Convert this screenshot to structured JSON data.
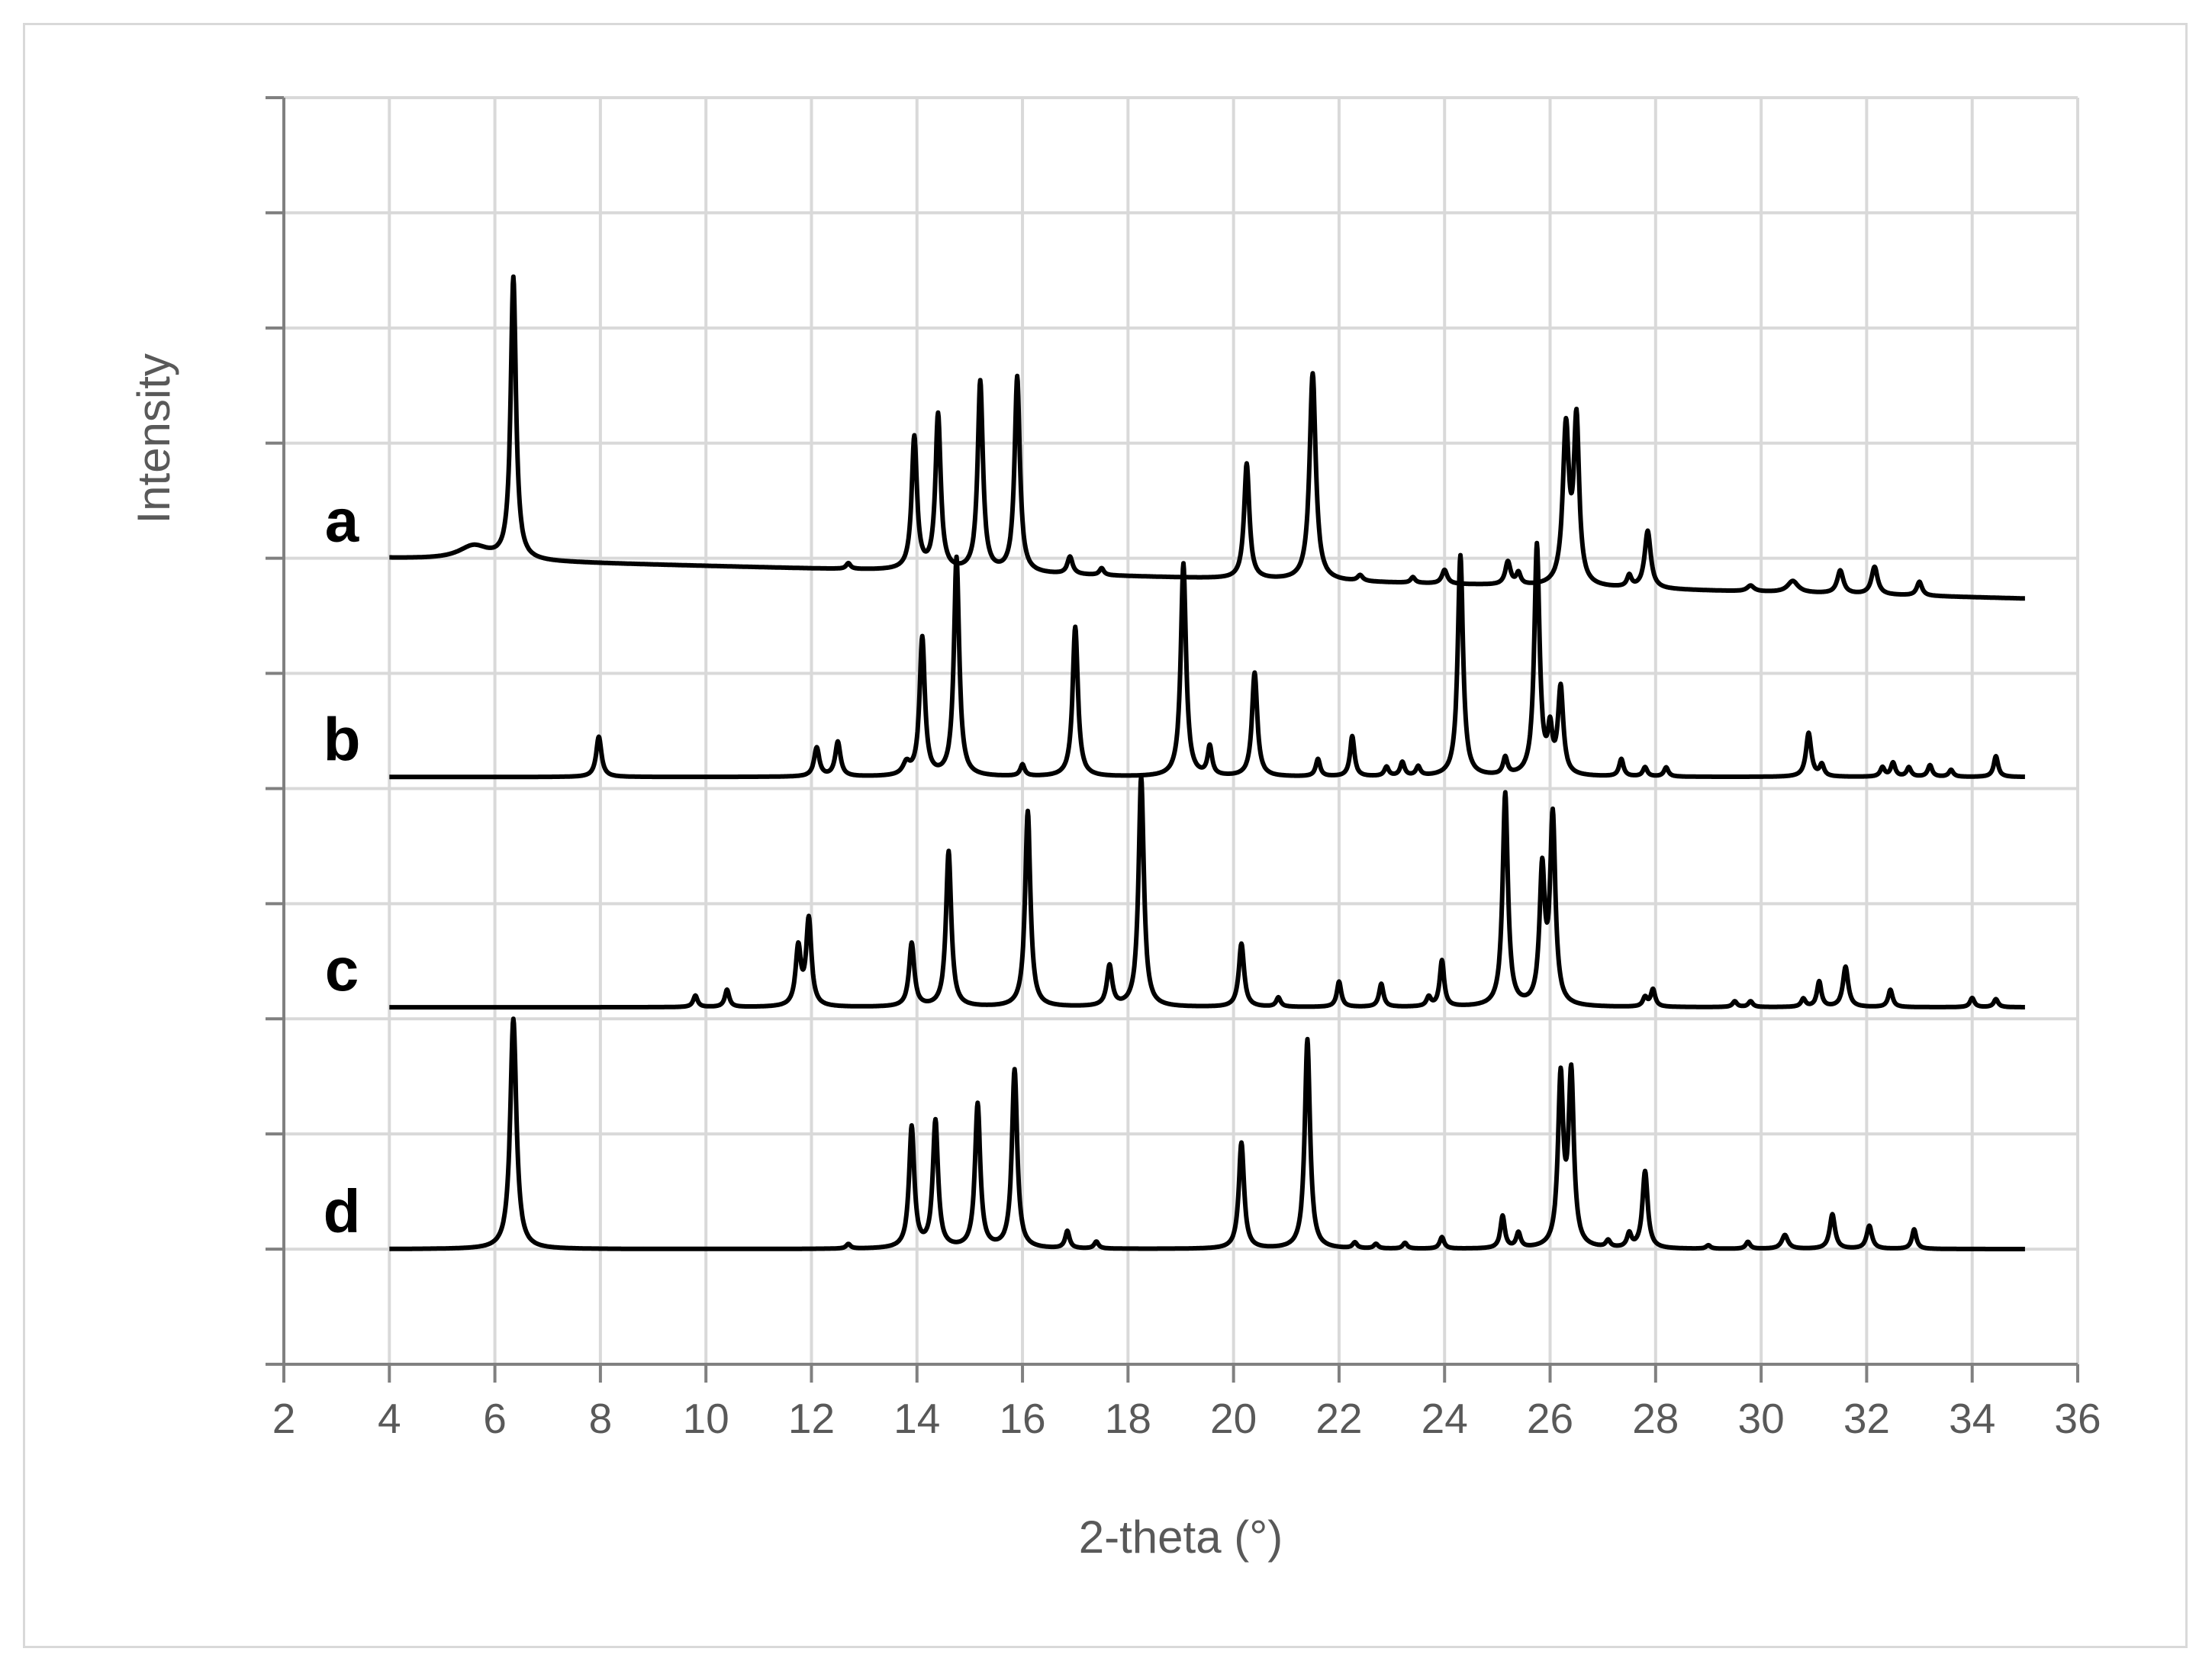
{
  "chart_data": {
    "type": "line",
    "title": "",
    "xlabel": "2-theta (°)",
    "ylabel": "Intensity",
    "xlim": [
      2,
      36
    ],
    "x_ticks": [
      2,
      4,
      6,
      8,
      10,
      12,
      14,
      16,
      18,
      20,
      22,
      24,
      26,
      28,
      30,
      32,
      34,
      36
    ],
    "ylim": [
      0,
      11
    ],
    "y_tick_labels_shown": false,
    "grid": true,
    "legend": "inline labels at left of each trace",
    "line_color": "#000000",
    "series": [
      {
        "name": "a",
        "baseline": 7.0,
        "baseline_end": 6.65,
        "peaks": [
          [
            5.6,
            0.12,
            0.35
          ],
          [
            6.35,
            2.45,
            0.06
          ],
          [
            12.7,
            0.05,
            0.05
          ],
          [
            13.95,
            1.15,
            0.06
          ],
          [
            14.4,
            1.35,
            0.06
          ],
          [
            15.2,
            1.65,
            0.06
          ],
          [
            15.9,
            1.7,
            0.06
          ],
          [
            16.9,
            0.15,
            0.06
          ],
          [
            17.5,
            0.06,
            0.05
          ],
          [
            20.25,
            1.0,
            0.06
          ],
          [
            21.5,
            1.8,
            0.07
          ],
          [
            22.4,
            0.05,
            0.06
          ],
          [
            23.4,
            0.05,
            0.05
          ],
          [
            24.0,
            0.12,
            0.06
          ],
          [
            25.2,
            0.2,
            0.06
          ],
          [
            25.4,
            0.1,
            0.05
          ],
          [
            26.3,
            1.35,
            0.07
          ],
          [
            26.5,
            1.4,
            0.06
          ],
          [
            27.5,
            0.1,
            0.05
          ],
          [
            27.85,
            0.5,
            0.07
          ],
          [
            29.8,
            0.05,
            0.08
          ],
          [
            30.6,
            0.1,
            0.12
          ],
          [
            31.5,
            0.2,
            0.07
          ],
          [
            32.15,
            0.24,
            0.07
          ],
          [
            33.0,
            0.12,
            0.06
          ]
        ]
      },
      {
        "name": "b",
        "baseline": 5.1,
        "baseline_end": 5.1,
        "peaks": [
          [
            7.97,
            0.35,
            0.06
          ],
          [
            12.1,
            0.25,
            0.06
          ],
          [
            12.5,
            0.3,
            0.06
          ],
          [
            13.8,
            0.1,
            0.08
          ],
          [
            14.1,
            1.2,
            0.06
          ],
          [
            14.75,
            1.9,
            0.06
          ],
          [
            16.0,
            0.1,
            0.05
          ],
          [
            17.0,
            1.3,
            0.06
          ],
          [
            19.05,
            1.85,
            0.06
          ],
          [
            19.55,
            0.25,
            0.05
          ],
          [
            20.4,
            0.9,
            0.06
          ],
          [
            21.6,
            0.15,
            0.05
          ],
          [
            22.25,
            0.35,
            0.05
          ],
          [
            22.9,
            0.08,
            0.05
          ],
          [
            23.2,
            0.12,
            0.05
          ],
          [
            23.5,
            0.08,
            0.05
          ],
          [
            24.3,
            1.92,
            0.06
          ],
          [
            25.15,
            0.15,
            0.05
          ],
          [
            25.75,
            2.0,
            0.06
          ],
          [
            26.0,
            0.35,
            0.05
          ],
          [
            26.2,
            0.75,
            0.06
          ],
          [
            27.35,
            0.15,
            0.05
          ],
          [
            27.8,
            0.08,
            0.05
          ],
          [
            28.2,
            0.08,
            0.05
          ],
          [
            30.9,
            0.38,
            0.06
          ],
          [
            31.15,
            0.1,
            0.05
          ],
          [
            32.3,
            0.08,
            0.05
          ],
          [
            32.5,
            0.12,
            0.05
          ],
          [
            32.8,
            0.08,
            0.05
          ],
          [
            33.2,
            0.1,
            0.05
          ],
          [
            33.6,
            0.06,
            0.05
          ],
          [
            34.45,
            0.18,
            0.05
          ]
        ]
      },
      {
        "name": "c",
        "baseline": 3.1,
        "baseline_end": 3.1,
        "peaks": [
          [
            9.8,
            0.1,
            0.05
          ],
          [
            10.4,
            0.15,
            0.05
          ],
          [
            11.75,
            0.5,
            0.06
          ],
          [
            11.95,
            0.75,
            0.06
          ],
          [
            13.9,
            0.55,
            0.06
          ],
          [
            14.6,
            1.35,
            0.06
          ],
          [
            16.1,
            1.7,
            0.06
          ],
          [
            17.65,
            0.35,
            0.06
          ],
          [
            18.25,
            2.0,
            0.06
          ],
          [
            20.15,
            0.55,
            0.06
          ],
          [
            20.85,
            0.08,
            0.05
          ],
          [
            22.0,
            0.22,
            0.05
          ],
          [
            22.8,
            0.2,
            0.05
          ],
          [
            23.7,
            0.08,
            0.05
          ],
          [
            23.95,
            0.4,
            0.05
          ],
          [
            25.15,
            1.85,
            0.06
          ],
          [
            25.85,
            1.15,
            0.06
          ],
          [
            26.05,
            1.62,
            0.06
          ],
          [
            27.8,
            0.08,
            0.05
          ],
          [
            27.95,
            0.15,
            0.05
          ],
          [
            29.5,
            0.05,
            0.05
          ],
          [
            29.8,
            0.05,
            0.05
          ],
          [
            30.8,
            0.07,
            0.05
          ],
          [
            31.1,
            0.22,
            0.05
          ],
          [
            31.6,
            0.35,
            0.06
          ],
          [
            32.45,
            0.15,
            0.05
          ],
          [
            34.0,
            0.08,
            0.05
          ],
          [
            34.45,
            0.07,
            0.05
          ]
        ]
      },
      {
        "name": "d",
        "baseline": 1.0,
        "baseline_end": 1.0,
        "peaks": [
          [
            6.35,
            2.0,
            0.07
          ],
          [
            12.7,
            0.04,
            0.05
          ],
          [
            13.9,
            1.05,
            0.06
          ],
          [
            14.35,
            1.1,
            0.06
          ],
          [
            15.15,
            1.25,
            0.06
          ],
          [
            15.85,
            1.55,
            0.06
          ],
          [
            16.85,
            0.15,
            0.05
          ],
          [
            17.4,
            0.06,
            0.05
          ],
          [
            20.15,
            0.92,
            0.06
          ],
          [
            21.4,
            1.82,
            0.06
          ],
          [
            22.3,
            0.05,
            0.05
          ],
          [
            22.7,
            0.04,
            0.05
          ],
          [
            23.25,
            0.05,
            0.05
          ],
          [
            23.95,
            0.1,
            0.05
          ],
          [
            25.1,
            0.28,
            0.05
          ],
          [
            25.4,
            0.13,
            0.05
          ],
          [
            26.2,
            1.45,
            0.06
          ],
          [
            26.4,
            1.48,
            0.06
          ],
          [
            27.1,
            0.06,
            0.05
          ],
          [
            27.5,
            0.12,
            0.05
          ],
          [
            27.8,
            0.67,
            0.06
          ],
          [
            29.0,
            0.03,
            0.05
          ],
          [
            29.75,
            0.06,
            0.05
          ],
          [
            30.45,
            0.12,
            0.07
          ],
          [
            31.35,
            0.3,
            0.06
          ],
          [
            32.05,
            0.2,
            0.06
          ],
          [
            32.9,
            0.17,
            0.05
          ]
        ]
      }
    ]
  }
}
